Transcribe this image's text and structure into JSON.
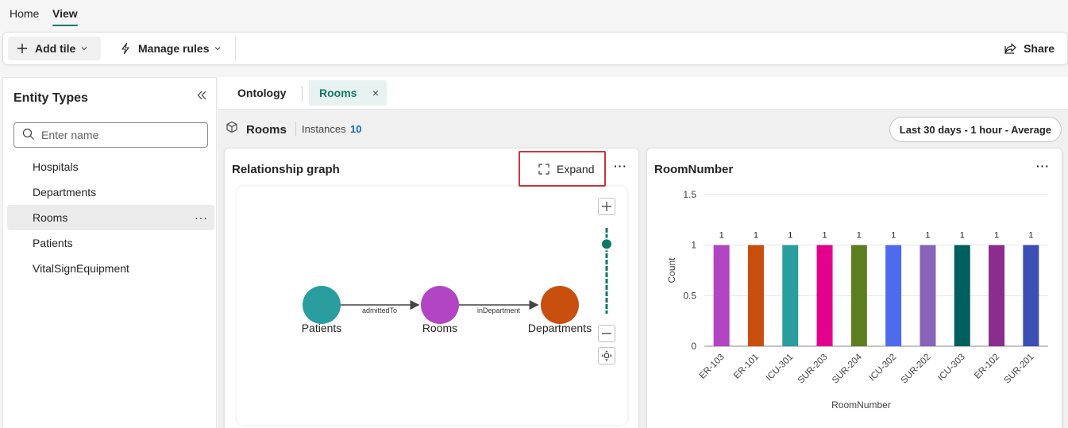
{
  "menu": {
    "home": "Home",
    "view": "View"
  },
  "toolbar": {
    "add_tile": "Add tile",
    "manage_rules": "Manage rules",
    "share": "Share"
  },
  "sidebar": {
    "title": "Entity Types",
    "search_placeholder": "Enter name",
    "items": [
      {
        "label": "Hospitals"
      },
      {
        "label": "Departments"
      },
      {
        "label": "Rooms",
        "more": "···"
      },
      {
        "label": "Patients"
      },
      {
        "label": "VitalSignEquipment"
      }
    ]
  },
  "tabs": {
    "ontology": "Ontology",
    "rooms": "Rooms",
    "close": "×"
  },
  "entity": {
    "title": "Rooms",
    "instances_label": "Instances",
    "instances_count": "10"
  },
  "time_filter": "Last 30 days - 1 hour - Average",
  "graph_card": {
    "title": "Relationship graph",
    "expand": "Expand",
    "more": "···",
    "nodes": [
      {
        "label": "Patients",
        "color": "#2a9d9f"
      },
      {
        "label": "Rooms",
        "color": "#b145c4"
      },
      {
        "label": "Departments",
        "color": "#c94f0f"
      }
    ],
    "edges": [
      {
        "label": "admittedTo"
      },
      {
        "label": "inDepartment"
      }
    ],
    "zoom_level": 0.83
  },
  "bar_card": {
    "title": "RoomNumber",
    "more": "···"
  },
  "chart_data": {
    "type": "bar",
    "title": "RoomNumber",
    "xlabel": "RoomNumber",
    "ylabel": "Count",
    "ylim": [
      0,
      1.5
    ],
    "yticks": [
      "0",
      "0.5",
      "1",
      "1.5"
    ],
    "grid": true,
    "categories": [
      "ER-103",
      "ER-101",
      "ICU-301",
      "SUR-203",
      "SUR-204",
      "ICU-302",
      "SUR-202",
      "ICU-303",
      "ER-102",
      "SUR-201"
    ],
    "values": [
      1,
      1,
      1,
      1,
      1,
      1,
      1,
      1,
      1,
      1
    ],
    "data_labels": [
      "1",
      "1",
      "1",
      "1",
      "1",
      "1",
      "1",
      "1",
      "1",
      "1"
    ],
    "colors": [
      "#b145c4",
      "#c94f0f",
      "#2a9d9f",
      "#e3008c",
      "#5c7e1f",
      "#4f6bed",
      "#8764b8",
      "#005f5f",
      "#8a2d8e",
      "#3b4fb5"
    ]
  }
}
